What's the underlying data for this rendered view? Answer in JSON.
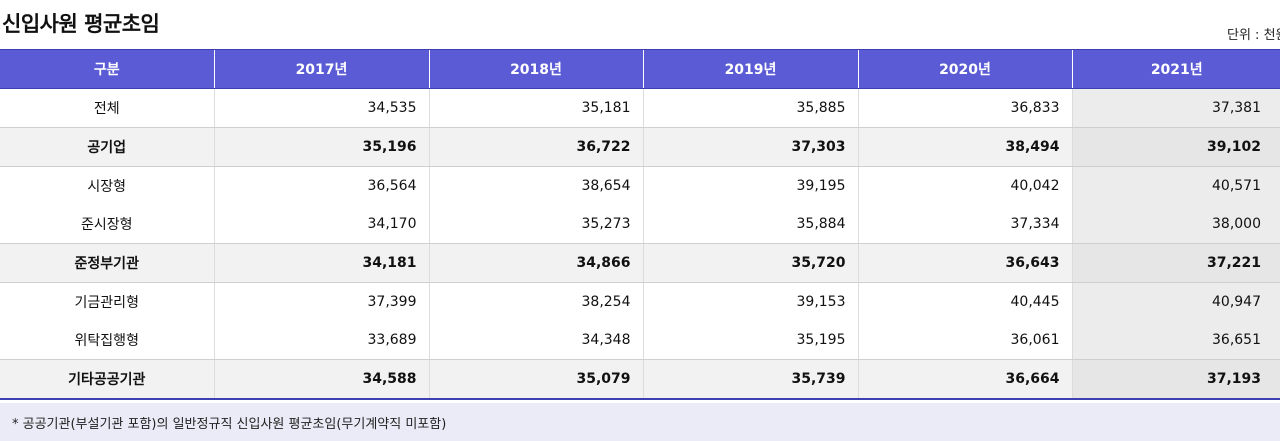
{
  "title": "신입사원 평균초임",
  "unit": "단위 : 천원",
  "columns": [
    "구분",
    "2017년",
    "2018년",
    "2019년",
    "2020년",
    "2021년"
  ],
  "rows": [
    {
      "label": "전체",
      "values": [
        "34,535",
        "35,181",
        "35,885",
        "36,833",
        "37,381"
      ]
    },
    {
      "label": "공기업",
      "values": [
        "35,196",
        "36,722",
        "37,303",
        "38,494",
        "39,102"
      ]
    },
    {
      "label": "시장형",
      "values": [
        "36,564",
        "38,654",
        "39,195",
        "40,042",
        "40,571"
      ]
    },
    {
      "label": "준시장형",
      "values": [
        "34,170",
        "35,273",
        "35,884",
        "37,334",
        "38,000"
      ]
    },
    {
      "label": "준정부기관",
      "values": [
        "34,181",
        "34,866",
        "35,720",
        "36,643",
        "37,221"
      ]
    },
    {
      "label": "기금관리형",
      "values": [
        "37,399",
        "38,254",
        "39,153",
        "40,445",
        "40,947"
      ]
    },
    {
      "label": "위탁집행형",
      "values": [
        "33,689",
        "34,348",
        "35,195",
        "36,061",
        "36,651"
      ]
    },
    {
      "label": "기타공공기관",
      "values": [
        "34,588",
        "35,079",
        "35,739",
        "36,664",
        "37,193"
      ]
    }
  ],
  "note": "* 공공기관(부설기관 포함)의 일반정규직 신입사원 평균초임(무기계약직 미포함)",
  "colors": {
    "header_bg": "#5b5bd6",
    "header_text": "#ffffff",
    "group_row_bg": "#f2f2f2",
    "last_col_bg": "#ececec",
    "note_bg": "#ebebf7"
  }
}
